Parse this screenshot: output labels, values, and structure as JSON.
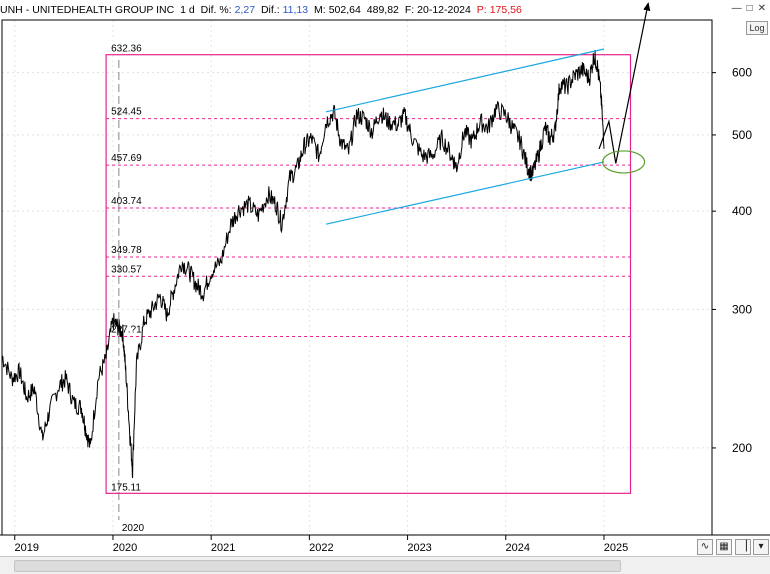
{
  "header": {
    "symbol": "UNH",
    "name": "UNITEDHEALTH GROUP INC",
    "interval": "1 d",
    "dif_pct_label": "Dif. %:",
    "dif_pct_value": "2,27",
    "dif_label": "Dif.:",
    "dif_value": "11,13",
    "m_label": "M:",
    "m_value": "502,64",
    "m_value2": "489,82",
    "f_label": "F:",
    "f_value": "20-12-2024",
    "p_label": "P:",
    "p_value": "175,56"
  },
  "toolbar": {
    "log_label": "Log"
  },
  "colors": {
    "fib_box": "#e8228c",
    "channel": "#1aa7e0",
    "ellipse": "#5aa02c",
    "price": "#000000"
  },
  "chart_data": {
    "type": "line",
    "title": "",
    "y_scale": "log",
    "ylim": [
      155,
      700
    ],
    "y_ticks": [
      200,
      300,
      400,
      500,
      600
    ],
    "x_ticks": [
      "2019",
      "2020",
      "2021",
      "2022",
      "2023",
      "2024",
      "2025"
    ],
    "x_tick_years": [
      2019,
      2020,
      2021,
      2022,
      2023,
      2024,
      2025
    ],
    "xlim": [
      2018.87,
      2026.1
    ],
    "fib_box": {
      "x_start": 2019.93,
      "x_end": 2025.27,
      "high": 632.36,
      "low": 175.11
    },
    "fib_levels": [
      {
        "label": "524.45",
        "value": 524.45
      },
      {
        "label": "457.69",
        "value": 457.69
      },
      {
        "label": "403.74",
        "value": 403.74
      },
      {
        "label": "349.78",
        "value": 349.78
      },
      {
        "label": "330.57",
        "value": 330.57
      },
      {
        "label": "2?7.?1",
        "value": 277.1
      }
    ],
    "box_high_label": "632.36",
    "box_low_label": "175.11",
    "vertical_marker": {
      "x": 2020.06,
      "label": "2020"
    },
    "channel_upper": [
      [
        2022.17,
        535
      ],
      [
        2025.0,
        643
      ]
    ],
    "channel_lower": [
      [
        2022.17,
        385
      ],
      [
        2025.0,
        462
      ]
    ],
    "projection": [
      [
        2024.95,
        480
      ],
      [
        2025.05,
        520
      ],
      [
        2025.12,
        460
      ],
      [
        2025.45,
        735
      ]
    ],
    "target_ellipse": {
      "x": 2025.2,
      "y": 462
    },
    "price_anchors": [
      [
        2018.87,
        262
      ],
      [
        2018.97,
        245
      ],
      [
        2019.05,
        250
      ],
      [
        2019.12,
        232
      ],
      [
        2019.2,
        238
      ],
      [
        2019.28,
        205
      ],
      [
        2019.35,
        222
      ],
      [
        2019.45,
        240
      ],
      [
        2019.52,
        245
      ],
      [
        2019.6,
        228
      ],
      [
        2019.68,
        225
      ],
      [
        2019.72,
        212
      ],
      [
        2019.77,
        200
      ],
      [
        2019.85,
        245
      ],
      [
        2019.93,
        260
      ],
      [
        2020.0,
        290
      ],
      [
        2020.05,
        285
      ],
      [
        2020.1,
        280
      ],
      [
        2020.13,
        250
      ],
      [
        2020.17,
        210
      ],
      [
        2020.2,
        187
      ],
      [
        2020.24,
        255
      ],
      [
        2020.32,
        290
      ],
      [
        2020.4,
        300
      ],
      [
        2020.48,
        312
      ],
      [
        2020.55,
        295
      ],
      [
        2020.62,
        318
      ],
      [
        2020.7,
        345
      ],
      [
        2020.78,
        335
      ],
      [
        2020.85,
        322
      ],
      [
        2020.92,
        315
      ],
      [
        2021.0,
        335
      ],
      [
        2021.1,
        345
      ],
      [
        2021.2,
        385
      ],
      [
        2021.28,
        402
      ],
      [
        2021.38,
        408
      ],
      [
        2021.48,
        395
      ],
      [
        2021.58,
        420
      ],
      [
        2021.66,
        408
      ],
      [
        2021.72,
        385
      ],
      [
        2021.8,
        440
      ],
      [
        2021.88,
        455
      ],
      [
        2021.95,
        485
      ],
      [
        2022.02,
        495
      ],
      [
        2022.1,
        470
      ],
      [
        2022.17,
        520
      ],
      [
        2022.25,
        535
      ],
      [
        2022.32,
        490
      ],
      [
        2022.4,
        475
      ],
      [
        2022.48,
        530
      ],
      [
        2022.56,
        525
      ],
      [
        2022.64,
        505
      ],
      [
        2022.72,
        535
      ],
      [
        2022.8,
        520
      ],
      [
        2022.9,
        515
      ],
      [
        2022.97,
        530
      ],
      [
        2023.05,
        495
      ],
      [
        2023.15,
        470
      ],
      [
        2023.25,
        470
      ],
      [
        2023.35,
        495
      ],
      [
        2023.45,
        470
      ],
      [
        2023.5,
        455
      ],
      [
        2023.58,
        505
      ],
      [
        2023.66,
        490
      ],
      [
        2023.74,
        520
      ],
      [
        2023.82,
        510
      ],
      [
        2023.9,
        540
      ],
      [
        2024.0,
        530
      ],
      [
        2024.07,
        510
      ],
      [
        2024.15,
        490
      ],
      [
        2024.22,
        455
      ],
      [
        2024.27,
        445
      ],
      [
        2024.33,
        470
      ],
      [
        2024.4,
        510
      ],
      [
        2024.45,
        495
      ],
      [
        2024.5,
        505
      ],
      [
        2024.55,
        580
      ],
      [
        2024.62,
        575
      ],
      [
        2024.7,
        595
      ],
      [
        2024.78,
        605
      ],
      [
        2024.85,
        590
      ],
      [
        2024.9,
        630
      ],
      [
        2024.93,
        615
      ],
      [
        2024.97,
        560
      ],
      [
        2025.0,
        480
      ]
    ]
  }
}
